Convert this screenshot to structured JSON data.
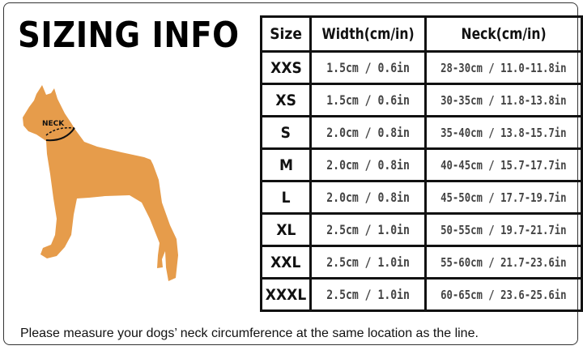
{
  "title": "SIZING INFO",
  "diagram": {
    "neck_label": "NECK",
    "dog_color": "#E69C4B"
  },
  "table": {
    "headers": [
      "Size",
      "Width(cm/in)",
      "Neck(cm/in)"
    ],
    "rows": [
      [
        "XXS",
        "1.5cm / 0.6in",
        "28-30cm / 11.0-11.8in"
      ],
      [
        "XS",
        "1.5cm / 0.6in",
        "30-35cm / 11.8-13.8in"
      ],
      [
        "S",
        "2.0cm / 0.8in",
        "35-40cm / 13.8-15.7in"
      ],
      [
        "M",
        "2.0cm / 0.8in",
        "40-45cm / 15.7-17.7in"
      ],
      [
        "L",
        "2.0cm / 0.8in",
        "45-50cm / 17.7-19.7in"
      ],
      [
        "XL",
        "2.5cm / 1.0in",
        "50-55cm / 19.7-21.7in"
      ],
      [
        "XXL",
        "2.5cm / 1.0in",
        "55-60cm / 21.7-23.6in"
      ],
      [
        "XXXL",
        "2.5cm / 1.0in",
        "60-65cm / 23.6-25.6in"
      ]
    ]
  },
  "note": "Please measure your dogs’  neck circumference at the same location as the line."
}
